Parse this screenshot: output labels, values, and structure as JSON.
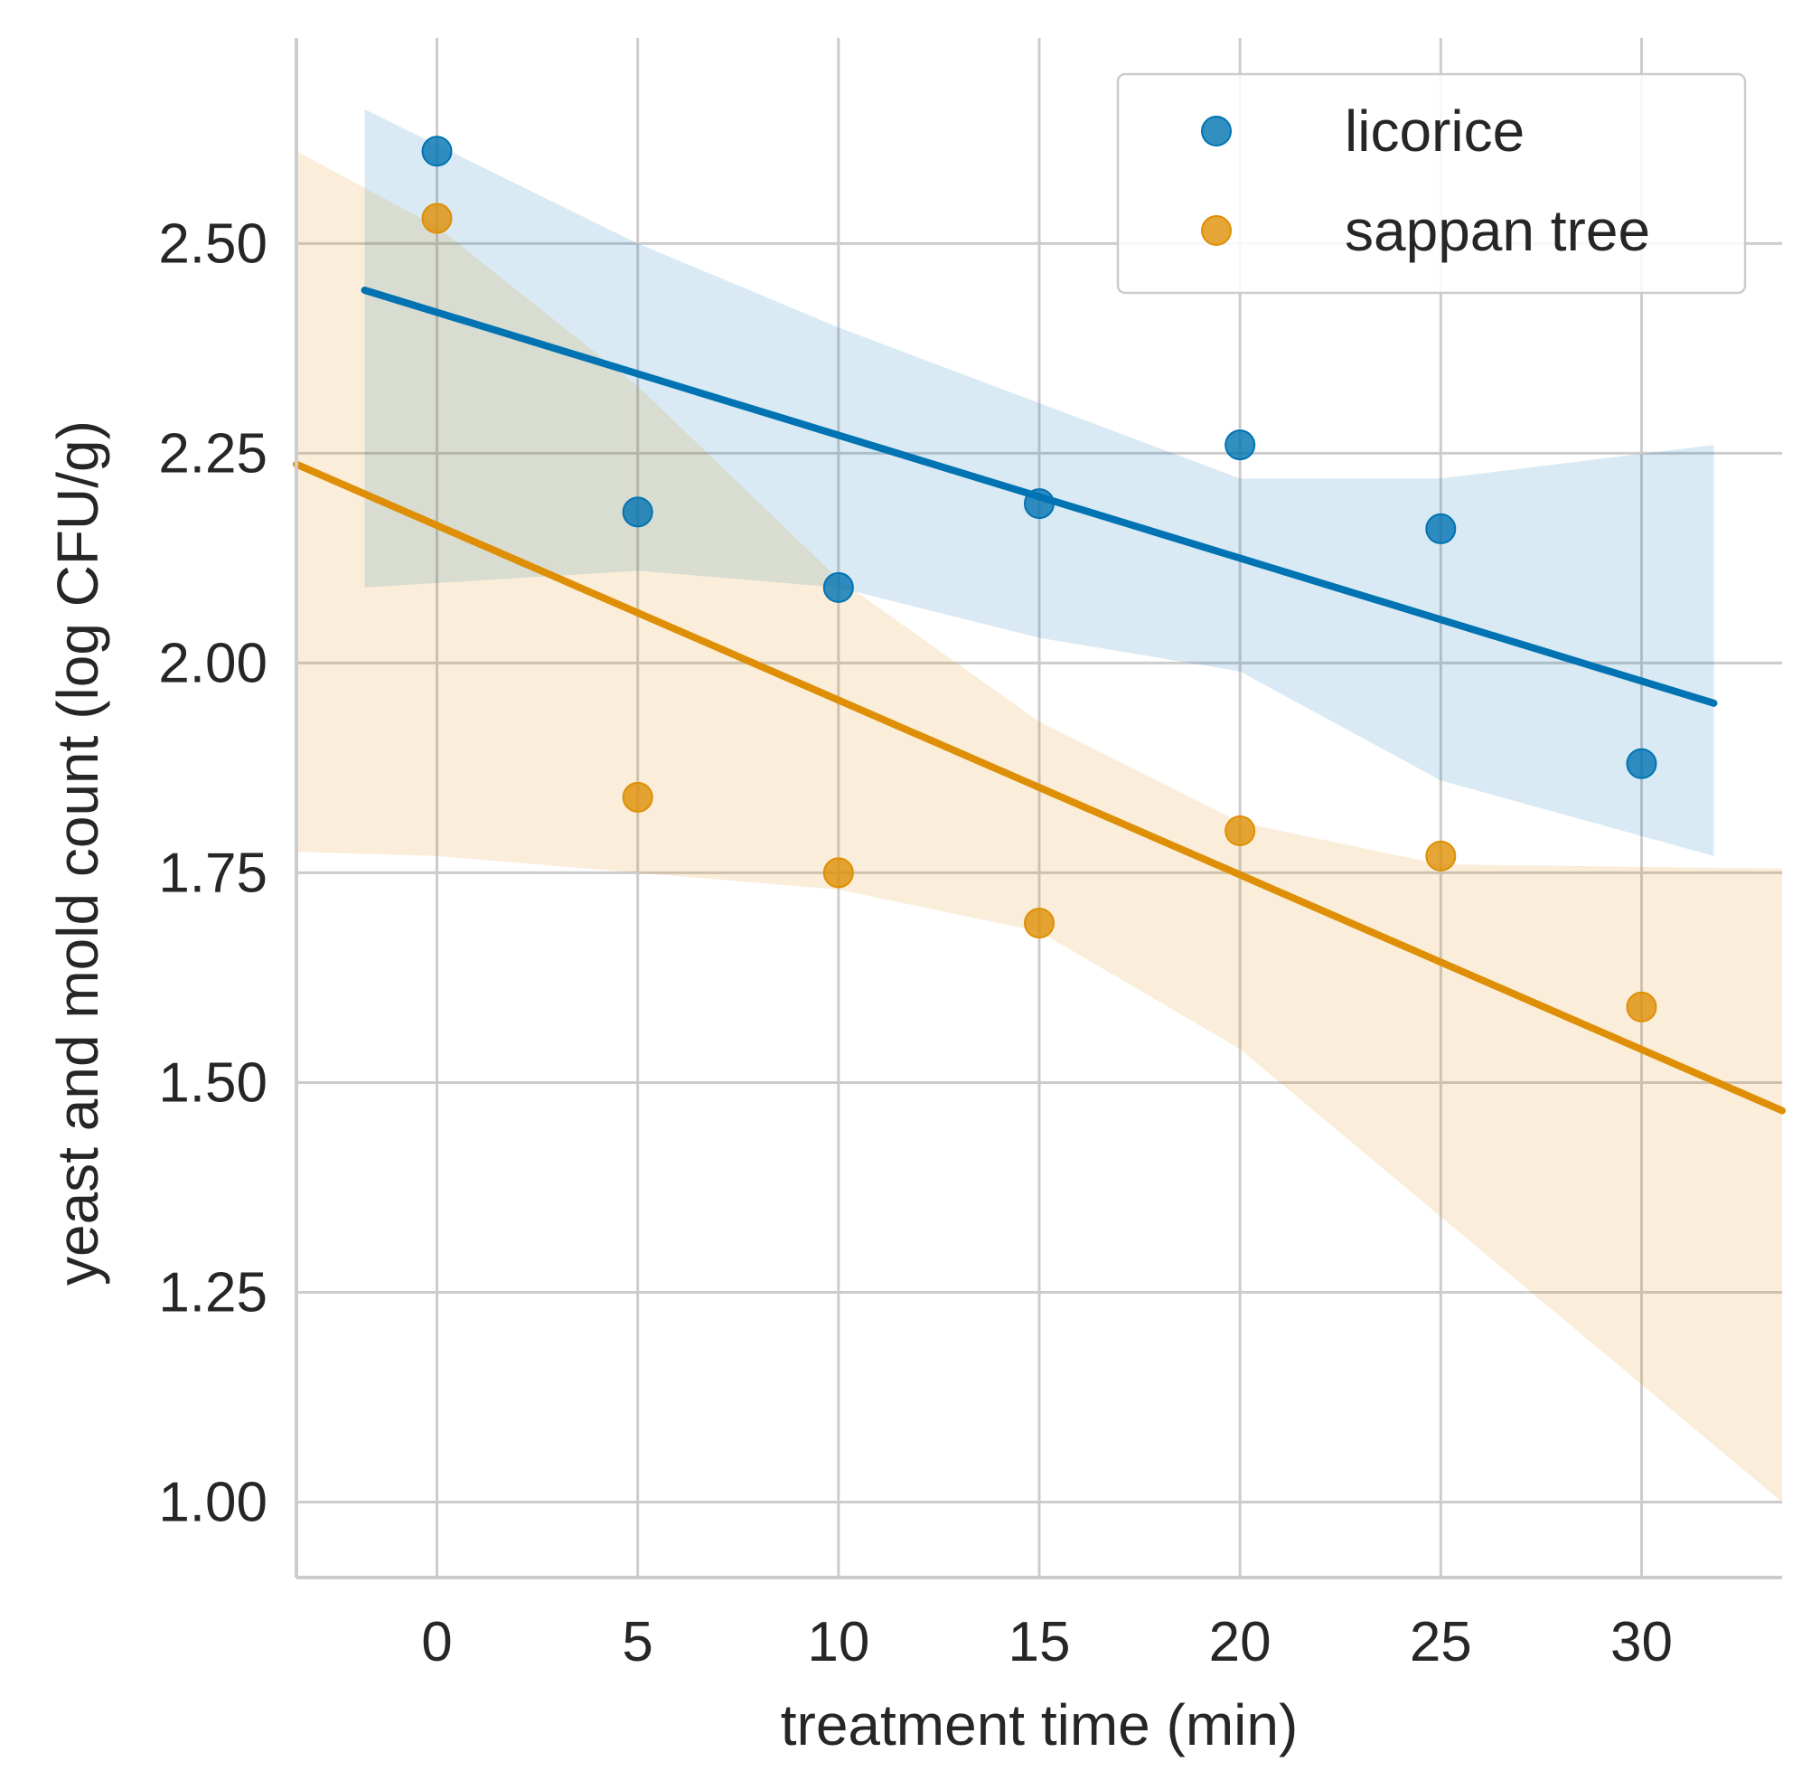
{
  "chart_data": {
    "type": "scatter",
    "xlabel": "treatment time (min)",
    "ylabel": "yeast and mold count (log CFU/g)",
    "xlim": [
      -3.5,
      33.5
    ],
    "ylim": [
      0.91,
      2.745
    ],
    "x_ticks": [
      "0",
      "5",
      "10",
      "15",
      "20",
      "25",
      "30"
    ],
    "y_ticks": [
      "1.00",
      "1.25",
      "1.50",
      "1.75",
      "2.00",
      "2.25",
      "2.50"
    ],
    "grid": true,
    "legend_position": "top-right",
    "series": [
      {
        "name": "licorice",
        "color": "#0173b2",
        "x": [
          0,
          5,
          10,
          15,
          20,
          25,
          30
        ],
        "y": [
          2.61,
          2.18,
          2.09,
          2.19,
          2.26,
          2.16,
          1.88
        ],
        "fit": {
          "x_start": -1.8,
          "x_end": 31.8,
          "slope": -0.01465,
          "intercept": 2.418
        },
        "ci_band": {
          "x": [
            -1.8,
            5,
            10,
            15,
            20,
            25,
            31.8
          ],
          "upper": [
            2.66,
            2.5,
            2.4,
            2.31,
            2.22,
            2.22,
            2.26
          ],
          "lower": [
            2.09,
            2.11,
            2.09,
            2.03,
            1.99,
            1.86,
            1.77
          ]
        }
      },
      {
        "name": "sappan tree",
        "color": "#de8f05",
        "x": [
          0,
          5,
          10,
          15,
          20,
          25,
          30
        ],
        "y": [
          2.53,
          1.84,
          1.75,
          1.69,
          1.8,
          1.77,
          1.59
        ],
        "fit": {
          "x_start": -3.5,
          "x_end": 33.5,
          "slope": -0.02082,
          "intercept": 2.164
        },
        "ci_band": {
          "x": [
            -3.5,
            0,
            5,
            10,
            15,
            20,
            25,
            33.5
          ],
          "upper": [
            2.61,
            2.52,
            2.33,
            2.1,
            1.93,
            1.81,
            1.76,
            1.755
          ],
          "lower": [
            1.775,
            1.77,
            1.75,
            1.73,
            1.68,
            1.54,
            1.34,
            1.0
          ]
        }
      }
    ]
  }
}
